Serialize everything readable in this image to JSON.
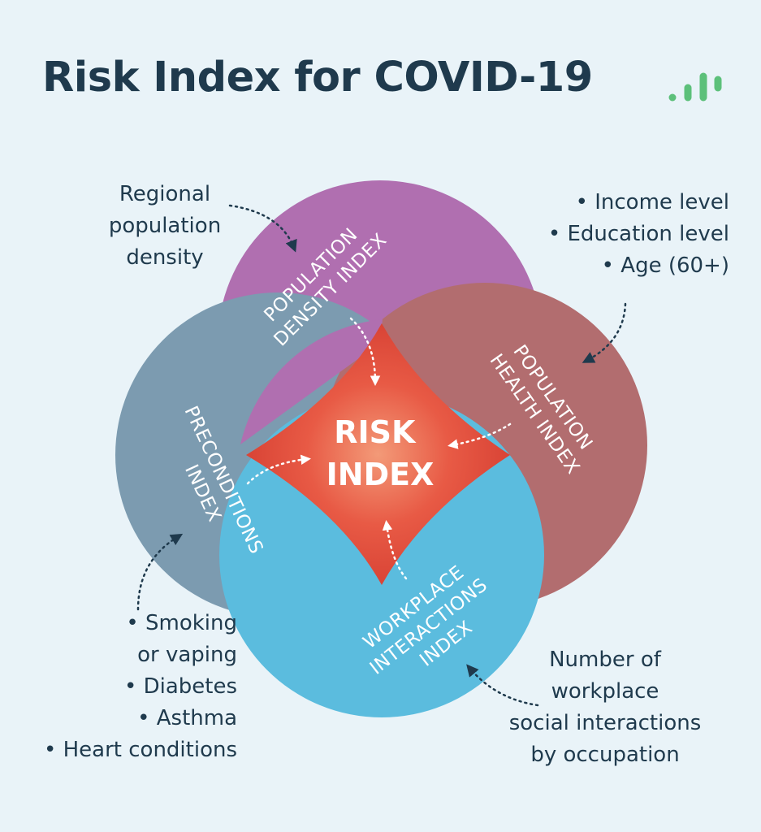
{
  "title": "Risk Index for COVID-19",
  "colors": {
    "background": "#e9f3f8",
    "title": "#1f3a4d",
    "population_density": "#b06fb0",
    "population_health": "#b26d6f",
    "preconditions": "#7c9bb0",
    "workplace_interactions": "#5bbcde",
    "risk_core": "#e0473a",
    "logo": "#5cc07a"
  },
  "logo_icon": "bar-chart-logo-icon",
  "center": {
    "line1": "RISK",
    "line2": "INDEX"
  },
  "circles": {
    "population_density": {
      "line1": "POPULATION",
      "line2": "DENSITY INDEX"
    },
    "population_health": {
      "line1": "POPULATION",
      "line2": "HEALTH INDEX"
    },
    "preconditions": {
      "line1": "PRECONDITIONS",
      "line2": "INDEX"
    },
    "workplace_interactions": {
      "line1": "WORKPLACE",
      "line2": "INTERACTIONS",
      "line3": "INDEX"
    }
  },
  "annotations": {
    "population_density": [
      "Regional",
      "population",
      "density"
    ],
    "population_health": [
      "Income level",
      "Education level",
      "Age (60+)"
    ],
    "preconditions": [
      "Smoking",
      "or vaping",
      "Diabetes",
      "Asthma",
      "Heart conditions"
    ],
    "workplace_interactions": [
      "Number of",
      "workplace",
      "social interactions",
      "by occupation"
    ]
  }
}
